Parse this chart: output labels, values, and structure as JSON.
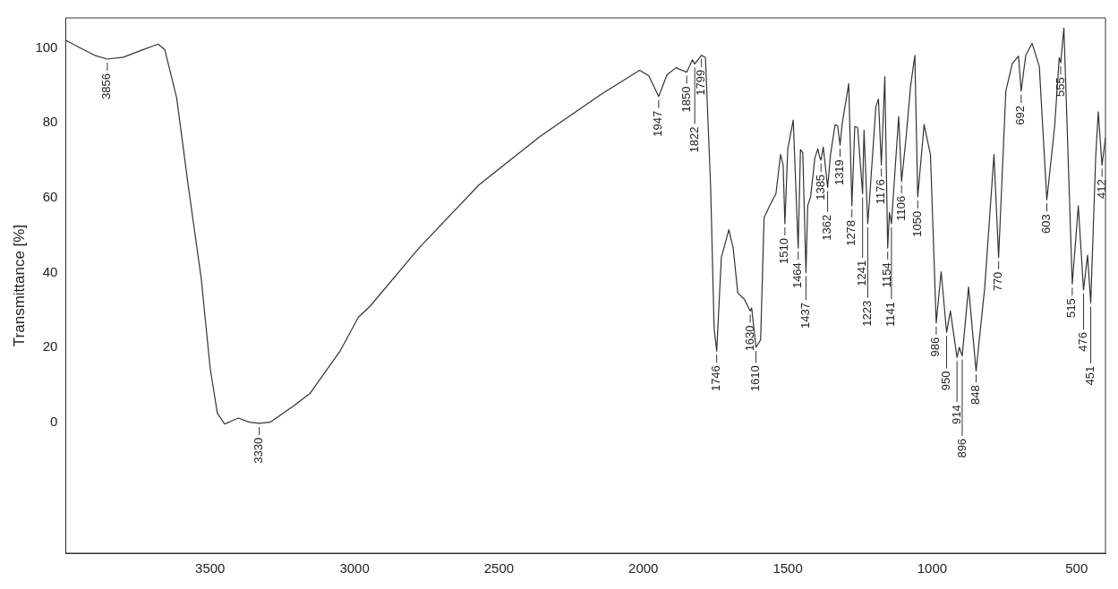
{
  "chart_data": {
    "type": "line",
    "ylabel": "Transmittance [%]",
    "xlim": [
      4000,
      400
    ],
    "xticks": [
      3500,
      3000,
      2500,
      2000,
      1500,
      1000,
      500
    ],
    "ylim": [
      -35,
      108
    ],
    "yticks": [
      0,
      20,
      40,
      60,
      80,
      100
    ],
    "grid": false,
    "legend": false,
    "marker": "none",
    "line_style": "solid",
    "series": [
      {
        "color": "#333333",
        "x": [
          4000,
          3950,
          3900,
          3856,
          3800,
          3750,
          3680,
          3657,
          3616,
          3575,
          3531,
          3500,
          3475,
          3450,
          3402,
          3365,
          3330,
          3292,
          3208,
          3154,
          3050,
          2987,
          2946,
          2777,
          2569,
          2358,
          2148,
          2013,
          1981,
          1947,
          1918,
          1887,
          1850,
          1830,
          1822,
          1799,
          1785,
          1767,
          1755,
          1746,
          1730,
          1704,
          1689,
          1673,
          1651,
          1630,
          1625,
          1610,
          1594,
          1582,
          1563,
          1541,
          1525,
          1516,
          1510,
          1500,
          1481,
          1464,
          1456,
          1448,
          1437,
          1431,
          1421,
          1406,
          1396,
          1390,
          1385,
          1377,
          1362,
          1352,
          1336,
          1327,
          1319,
          1312,
          1289,
          1278,
          1268,
          1258,
          1241,
          1236,
          1223,
          1217,
          1195,
          1186,
          1176,
          1164,
          1154,
          1148,
          1141,
          1116,
          1106,
          1091,
          1075,
          1060,
          1050,
          1028,
          1006,
          986,
          969,
          950,
          937,
          914,
          906,
          896,
          874,
          848,
          818,
          786,
          770,
          745,
          723,
          701,
          692,
          676,
          654,
          629,
          603,
          576,
          560,
          555,
          544,
          535,
          515,
          494,
          476,
          462,
          451,
          434,
          425,
          412,
          400
        ],
        "values": [
          102,
          100,
          98,
          97,
          97.5,
          99,
          101,
          99.5,
          86.7,
          62.7,
          38.5,
          14.5,
          2.4,
          -0.5,
          1.1,
          0,
          -0.3,
          0,
          4.5,
          7.7,
          19,
          28,
          31,
          46.5,
          63.4,
          76.3,
          87.5,
          94,
          92.5,
          87,
          92.8,
          94.7,
          93.5,
          96.8,
          95.7,
          98,
          97.4,
          62.7,
          25,
          19,
          44,
          51.4,
          46.5,
          34.5,
          32.9,
          29.7,
          30.5,
          20,
          22,
          54.6,
          57.8,
          61,
          71.5,
          68.7,
          53,
          73,
          80.7,
          46.5,
          72.8,
          72,
          40,
          57.8,
          60.2,
          70.6,
          73,
          71,
          70,
          73.5,
          62.7,
          71.5,
          79.5,
          79.1,
          74,
          79.5,
          90.4,
          57.8,
          79,
          78.7,
          61,
          78,
          53,
          59.4,
          84.3,
          86.3,
          68.7,
          92.3,
          46.5,
          56,
          53,
          81.7,
          64.3,
          75.5,
          89.6,
          98,
          60.2,
          79.5,
          71.5,
          26.5,
          40.2,
          24,
          29.7,
          17.3,
          20,
          17.7,
          36.1,
          13.7,
          36,
          71.5,
          44,
          88.4,
          95.7,
          97.8,
          88.4,
          98,
          101.2,
          95,
          59.4,
          79,
          97.4,
          96,
          105.3,
          84.3,
          36.9,
          57.8,
          35.3,
          44.6,
          31.8,
          70.6,
          82.9,
          68.7,
          76
        ]
      }
    ],
    "annotations": [
      {
        "text": "3856",
        "x": 3856,
        "y": 97
      },
      {
        "text": "3330",
        "x": 3330,
        "y": -0.3
      },
      {
        "text": "1947",
        "x": 1947,
        "y": 87
      },
      {
        "text": "1850",
        "x": 1850,
        "y": 93.5
      },
      {
        "text": "1822",
        "x": 1822,
        "y": 95.7
      },
      {
        "text": "1799",
        "x": 1799,
        "y": 98
      },
      {
        "text": "1746",
        "x": 1746,
        "y": 19
      },
      {
        "text": "1630",
        "x": 1630,
        "y": 29.7
      },
      {
        "text": "1610",
        "x": 1610,
        "y": 20
      },
      {
        "text": "1510",
        "x": 1510,
        "y": 53
      },
      {
        "text": "1464",
        "x": 1464,
        "y": 46.5
      },
      {
        "text": "1437",
        "x": 1437,
        "y": 40
      },
      {
        "text": "1385",
        "x": 1385,
        "y": 70
      },
      {
        "text": "1362",
        "x": 1362,
        "y": 62.7
      },
      {
        "text": "1319",
        "x": 1319,
        "y": 74
      },
      {
        "text": "1278",
        "x": 1278,
        "y": 57.8
      },
      {
        "text": "1241",
        "x": 1241,
        "y": 61
      },
      {
        "text": "1223",
        "x": 1223,
        "y": 53
      },
      {
        "text": "1176",
        "x": 1176,
        "y": 68.7
      },
      {
        "text": "1154",
        "x": 1154,
        "y": 46.5
      },
      {
        "text": "1141",
        "x": 1141,
        "y": 53
      },
      {
        "text": "1106",
        "x": 1106,
        "y": 64.3
      },
      {
        "text": "1050",
        "x": 1050,
        "y": 60.2
      },
      {
        "text": "986",
        "x": 986,
        "y": 26.5
      },
      {
        "text": "950",
        "x": 950,
        "y": 24
      },
      {
        "text": "914",
        "x": 914,
        "y": 17.3
      },
      {
        "text": "896",
        "x": 896,
        "y": 17.7
      },
      {
        "text": "848",
        "x": 848,
        "y": 13.7
      },
      {
        "text": "770",
        "x": 770,
        "y": 44
      },
      {
        "text": "692",
        "x": 692,
        "y": 88.4
      },
      {
        "text": "603",
        "x": 603,
        "y": 59.4
      },
      {
        "text": "555",
        "x": 555,
        "y": 96
      },
      {
        "text": "515",
        "x": 515,
        "y": 36.9
      },
      {
        "text": "476",
        "x": 476,
        "y": 35.3
      },
      {
        "text": "451",
        "x": 451,
        "y": 31.8
      },
      {
        "text": "412",
        "x": 412,
        "y": 68.7
      }
    ]
  }
}
